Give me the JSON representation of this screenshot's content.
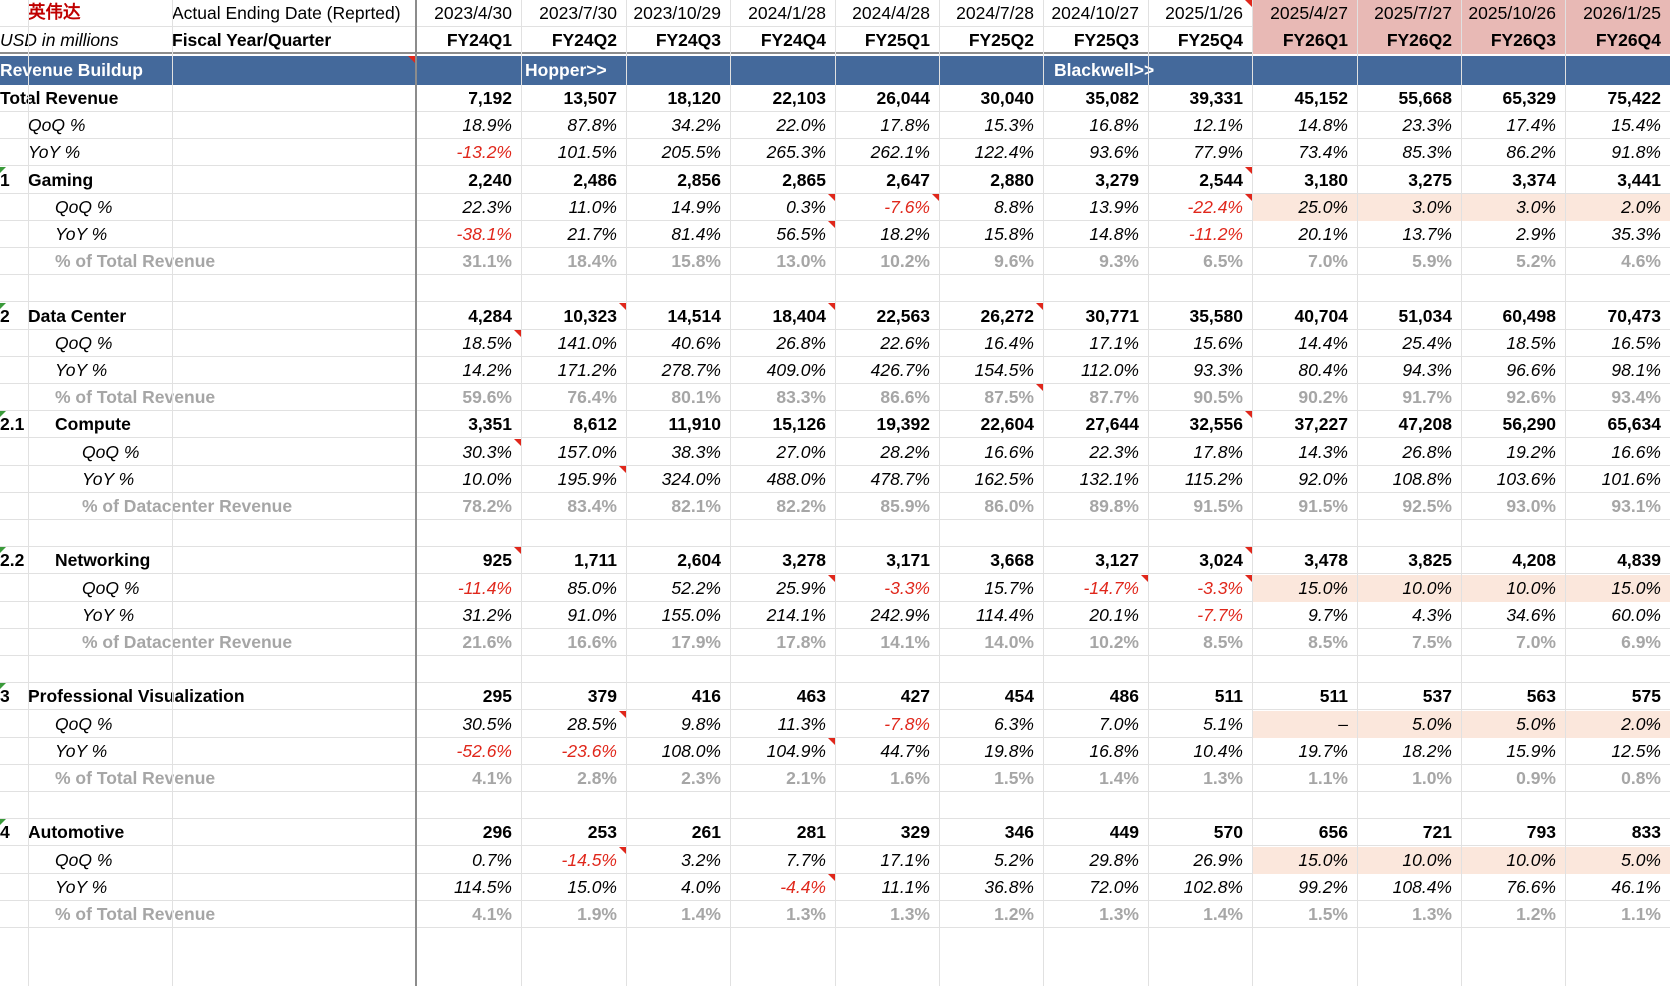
{
  "title_cn": "英伟达",
  "units_label": "USD in millions",
  "date_row_label": "Actual Ending Date (Reprted)",
  "fy_row_label": "Fiscal Year/Quarter",
  "dates": [
    "2023/4/30",
    "2023/7/30",
    "2023/10/29",
    "2024/1/28",
    "2024/4/28",
    "2024/7/28",
    "2024/10/27",
    "2025/1/26",
    "2025/4/27",
    "2025/7/27",
    "2025/10/26",
    "2026/1/25"
  ],
  "quarters": [
    "FY24Q1",
    "FY24Q2",
    "FY24Q3",
    "FY24Q4",
    "FY25Q1",
    "FY25Q2",
    "FY25Q3",
    "FY25Q4",
    "FY26Q1",
    "FY26Q2",
    "FY26Q3",
    "FY26Q4"
  ],
  "band": {
    "label": "Revenue Buildup",
    "hopper": "Hopper>>",
    "blackwell": "Blackwell>>"
  },
  "colors": {
    "band": "#44699b",
    "forecast_header": "#e8b9b5",
    "forecast_input": "#fbe7dc",
    "negative": "#e0271b",
    "grey_text": "#a6a6a6",
    "comment_marker": "#e0271b"
  },
  "rows": [
    {
      "num": "",
      "label": "Total Revenue",
      "style": "bold",
      "indent": 0,
      "values": [
        "7,192",
        "13,507",
        "18,120",
        "22,103",
        "26,044",
        "30,040",
        "35,082",
        "39,331",
        "45,152",
        "55,668",
        "65,329",
        "75,422"
      ]
    },
    {
      "num": "",
      "label": "QoQ %",
      "style": "ital",
      "indent": 1,
      "values": [
        "18.9%",
        "87.8%",
        "34.2%",
        "22.0%",
        "17.8%",
        "15.3%",
        "16.8%",
        "12.1%",
        "14.8%",
        "23.3%",
        "17.4%",
        "15.4%"
      ]
    },
    {
      "num": "",
      "label": "YoY %",
      "style": "ital",
      "indent": 1,
      "values": [
        "-13.2%",
        "101.5%",
        "205.5%",
        "265.3%",
        "262.1%",
        "122.4%",
        "93.6%",
        "77.9%",
        "73.4%",
        "85.3%",
        "86.2%",
        "91.8%"
      ]
    },
    {
      "num": "1",
      "label": "Gaming",
      "style": "bold",
      "indent": 1,
      "values": [
        "2,240",
        "2,486",
        "2,856",
        "2,865",
        "2,647",
        "2,880",
        "3,279",
        "2,544",
        "3,180",
        "3,275",
        "3,374",
        "3,441"
      ]
    },
    {
      "num": "",
      "label": "QoQ %",
      "style": "ital",
      "indent": 2,
      "values": [
        "22.3%",
        "11.0%",
        "14.9%",
        "0.3%",
        "-7.6%",
        "8.8%",
        "13.9%",
        "-22.4%",
        "25.0%",
        "3.0%",
        "3.0%",
        "2.0%"
      ]
    },
    {
      "num": "",
      "label": "YoY %",
      "style": "ital",
      "indent": 2,
      "values": [
        "-38.1%",
        "21.7%",
        "81.4%",
        "56.5%",
        "18.2%",
        "15.8%",
        "14.8%",
        "-11.2%",
        "20.1%",
        "13.7%",
        "2.9%",
        "35.3%"
      ]
    },
    {
      "num": "",
      "label": "% of Total Revenue",
      "style": "grey",
      "indent": 2,
      "values": [
        "31.1%",
        "18.4%",
        "15.8%",
        "13.0%",
        "10.2%",
        "9.6%",
        "9.3%",
        "6.5%",
        "7.0%",
        "5.9%",
        "5.2%",
        "4.6%"
      ]
    },
    {
      "num": "",
      "label": "",
      "style": "blank",
      "indent": 0,
      "values": [
        "",
        "",
        "",
        "",
        "",
        "",
        "",
        "",
        "",
        "",
        "",
        ""
      ]
    },
    {
      "num": "2",
      "label": "Data Center",
      "style": "bold",
      "indent": 1,
      "values": [
        "4,284",
        "10,323",
        "14,514",
        "18,404",
        "22,563",
        "26,272",
        "30,771",
        "35,580",
        "40,704",
        "51,034",
        "60,498",
        "70,473"
      ]
    },
    {
      "num": "",
      "label": "QoQ %",
      "style": "ital",
      "indent": 2,
      "values": [
        "18.5%",
        "141.0%",
        "40.6%",
        "26.8%",
        "22.6%",
        "16.4%",
        "17.1%",
        "15.6%",
        "14.4%",
        "25.4%",
        "18.5%",
        "16.5%"
      ]
    },
    {
      "num": "",
      "label": "YoY %",
      "style": "ital",
      "indent": 2,
      "values": [
        "14.2%",
        "171.2%",
        "278.7%",
        "409.0%",
        "426.7%",
        "154.5%",
        "112.0%",
        "93.3%",
        "80.4%",
        "94.3%",
        "96.6%",
        "98.1%"
      ]
    },
    {
      "num": "",
      "label": "% of Total Revenue",
      "style": "grey",
      "indent": 2,
      "values": [
        "59.6%",
        "76.4%",
        "80.1%",
        "83.3%",
        "86.6%",
        "87.5%",
        "87.7%",
        "90.5%",
        "90.2%",
        "91.7%",
        "92.6%",
        "93.4%"
      ]
    },
    {
      "num": "2.1",
      "label": "Compute",
      "style": "bold",
      "indent": 2,
      "values": [
        "3,351",
        "8,612",
        "11,910",
        "15,126",
        "19,392",
        "22,604",
        "27,644",
        "32,556",
        "37,227",
        "47,208",
        "56,290",
        "65,634"
      ]
    },
    {
      "num": "",
      "label": "QoQ %",
      "style": "ital",
      "indent": 3,
      "values": [
        "30.3%",
        "157.0%",
        "38.3%",
        "27.0%",
        "28.2%",
        "16.6%",
        "22.3%",
        "17.8%",
        "14.3%",
        "26.8%",
        "19.2%",
        "16.6%"
      ]
    },
    {
      "num": "",
      "label": "YoY %",
      "style": "ital",
      "indent": 3,
      "values": [
        "10.0%",
        "195.9%",
        "324.0%",
        "488.0%",
        "478.7%",
        "162.5%",
        "132.1%",
        "115.2%",
        "92.0%",
        "108.8%",
        "103.6%",
        "101.6%"
      ]
    },
    {
      "num": "",
      "label": "% of Datacenter Revenue",
      "style": "grey",
      "indent": 3,
      "values": [
        "78.2%",
        "83.4%",
        "82.1%",
        "82.2%",
        "85.9%",
        "86.0%",
        "89.8%",
        "91.5%",
        "91.5%",
        "92.5%",
        "93.0%",
        "93.1%"
      ]
    },
    {
      "num": "",
      "label": "",
      "style": "blank",
      "indent": 0,
      "values": [
        "",
        "",
        "",
        "",
        "",
        "",
        "",
        "",
        "",
        "",
        "",
        ""
      ]
    },
    {
      "num": "2.2",
      "label": "Networking",
      "style": "bold",
      "indent": 2,
      "values": [
        "925",
        "1,711",
        "2,604",
        "3,278",
        "3,171",
        "3,668",
        "3,127",
        "3,024",
        "3,478",
        "3,825",
        "4,208",
        "4,839"
      ]
    },
    {
      "num": "",
      "label": "QoQ %",
      "style": "ital",
      "indent": 3,
      "values": [
        "-11.4%",
        "85.0%",
        "52.2%",
        "25.9%",
        "-3.3%",
        "15.7%",
        "-14.7%",
        "-3.3%",
        "15.0%",
        "10.0%",
        "10.0%",
        "15.0%"
      ]
    },
    {
      "num": "",
      "label": "YoY %",
      "style": "ital",
      "indent": 3,
      "values": [
        "31.2%",
        "91.0%",
        "155.0%",
        "214.1%",
        "242.9%",
        "114.4%",
        "20.1%",
        "-7.7%",
        "9.7%",
        "4.3%",
        "34.6%",
        "60.0%"
      ]
    },
    {
      "num": "",
      "label": "% of Datacenter Revenue",
      "style": "grey",
      "indent": 3,
      "values": [
        "21.6%",
        "16.6%",
        "17.9%",
        "17.8%",
        "14.1%",
        "14.0%",
        "10.2%",
        "8.5%",
        "8.5%",
        "7.5%",
        "7.0%",
        "6.9%"
      ]
    },
    {
      "num": "",
      "label": "",
      "style": "blank",
      "indent": 0,
      "values": [
        "",
        "",
        "",
        "",
        "",
        "",
        "",
        "",
        "",
        "",
        "",
        ""
      ]
    },
    {
      "num": "3",
      "label": "Professional Visualization",
      "style": "bold",
      "indent": 1,
      "values": [
        "295",
        "379",
        "416",
        "463",
        "427",
        "454",
        "486",
        "511",
        "511",
        "537",
        "563",
        "575"
      ]
    },
    {
      "num": "",
      "label": "QoQ %",
      "style": "ital",
      "indent": 2,
      "values": [
        "30.5%",
        "28.5%",
        "9.8%",
        "11.3%",
        "-7.8%",
        "6.3%",
        "7.0%",
        "5.1%",
        "–",
        "5.0%",
        "5.0%",
        "2.0%"
      ]
    },
    {
      "num": "",
      "label": "YoY %",
      "style": "ital",
      "indent": 2,
      "values": [
        "-52.6%",
        "-23.6%",
        "108.0%",
        "104.9%",
        "44.7%",
        "19.8%",
        "16.8%",
        "10.4%",
        "19.7%",
        "18.2%",
        "15.9%",
        "12.5%"
      ]
    },
    {
      "num": "",
      "label": "% of Total Revenue",
      "style": "grey",
      "indent": 2,
      "values": [
        "4.1%",
        "2.8%",
        "2.3%",
        "2.1%",
        "1.6%",
        "1.5%",
        "1.4%",
        "1.3%",
        "1.1%",
        "1.0%",
        "0.9%",
        "0.8%"
      ]
    },
    {
      "num": "",
      "label": "",
      "style": "blank",
      "indent": 0,
      "values": [
        "",
        "",
        "",
        "",
        "",
        "",
        "",
        "",
        "",
        "",
        "",
        ""
      ]
    },
    {
      "num": "4",
      "label": "Automotive",
      "style": "bold",
      "indent": 1,
      "values": [
        "296",
        "253",
        "261",
        "281",
        "329",
        "346",
        "449",
        "570",
        "656",
        "721",
        "793",
        "833"
      ]
    },
    {
      "num": "",
      "label": "QoQ %",
      "style": "ital",
      "indent": 2,
      "values": [
        "0.7%",
        "-14.5%",
        "3.2%",
        "7.7%",
        "17.1%",
        "5.2%",
        "29.8%",
        "26.9%",
        "15.0%",
        "10.0%",
        "10.0%",
        "5.0%"
      ]
    },
    {
      "num": "",
      "label": "YoY %",
      "style": "ital",
      "indent": 2,
      "values": [
        "114.5%",
        "15.0%",
        "4.0%",
        "-4.4%",
        "11.1%",
        "36.8%",
        "72.0%",
        "102.8%",
        "99.2%",
        "108.4%",
        "76.6%",
        "46.1%"
      ]
    },
    {
      "num": "",
      "label": "% of Total Revenue",
      "style": "grey",
      "indent": 2,
      "values": [
        "4.1%",
        "1.9%",
        "1.4%",
        "1.3%",
        "1.3%",
        "1.2%",
        "1.3%",
        "1.4%",
        "1.5%",
        "1.3%",
        "1.2%",
        "1.1%"
      ]
    }
  ]
}
